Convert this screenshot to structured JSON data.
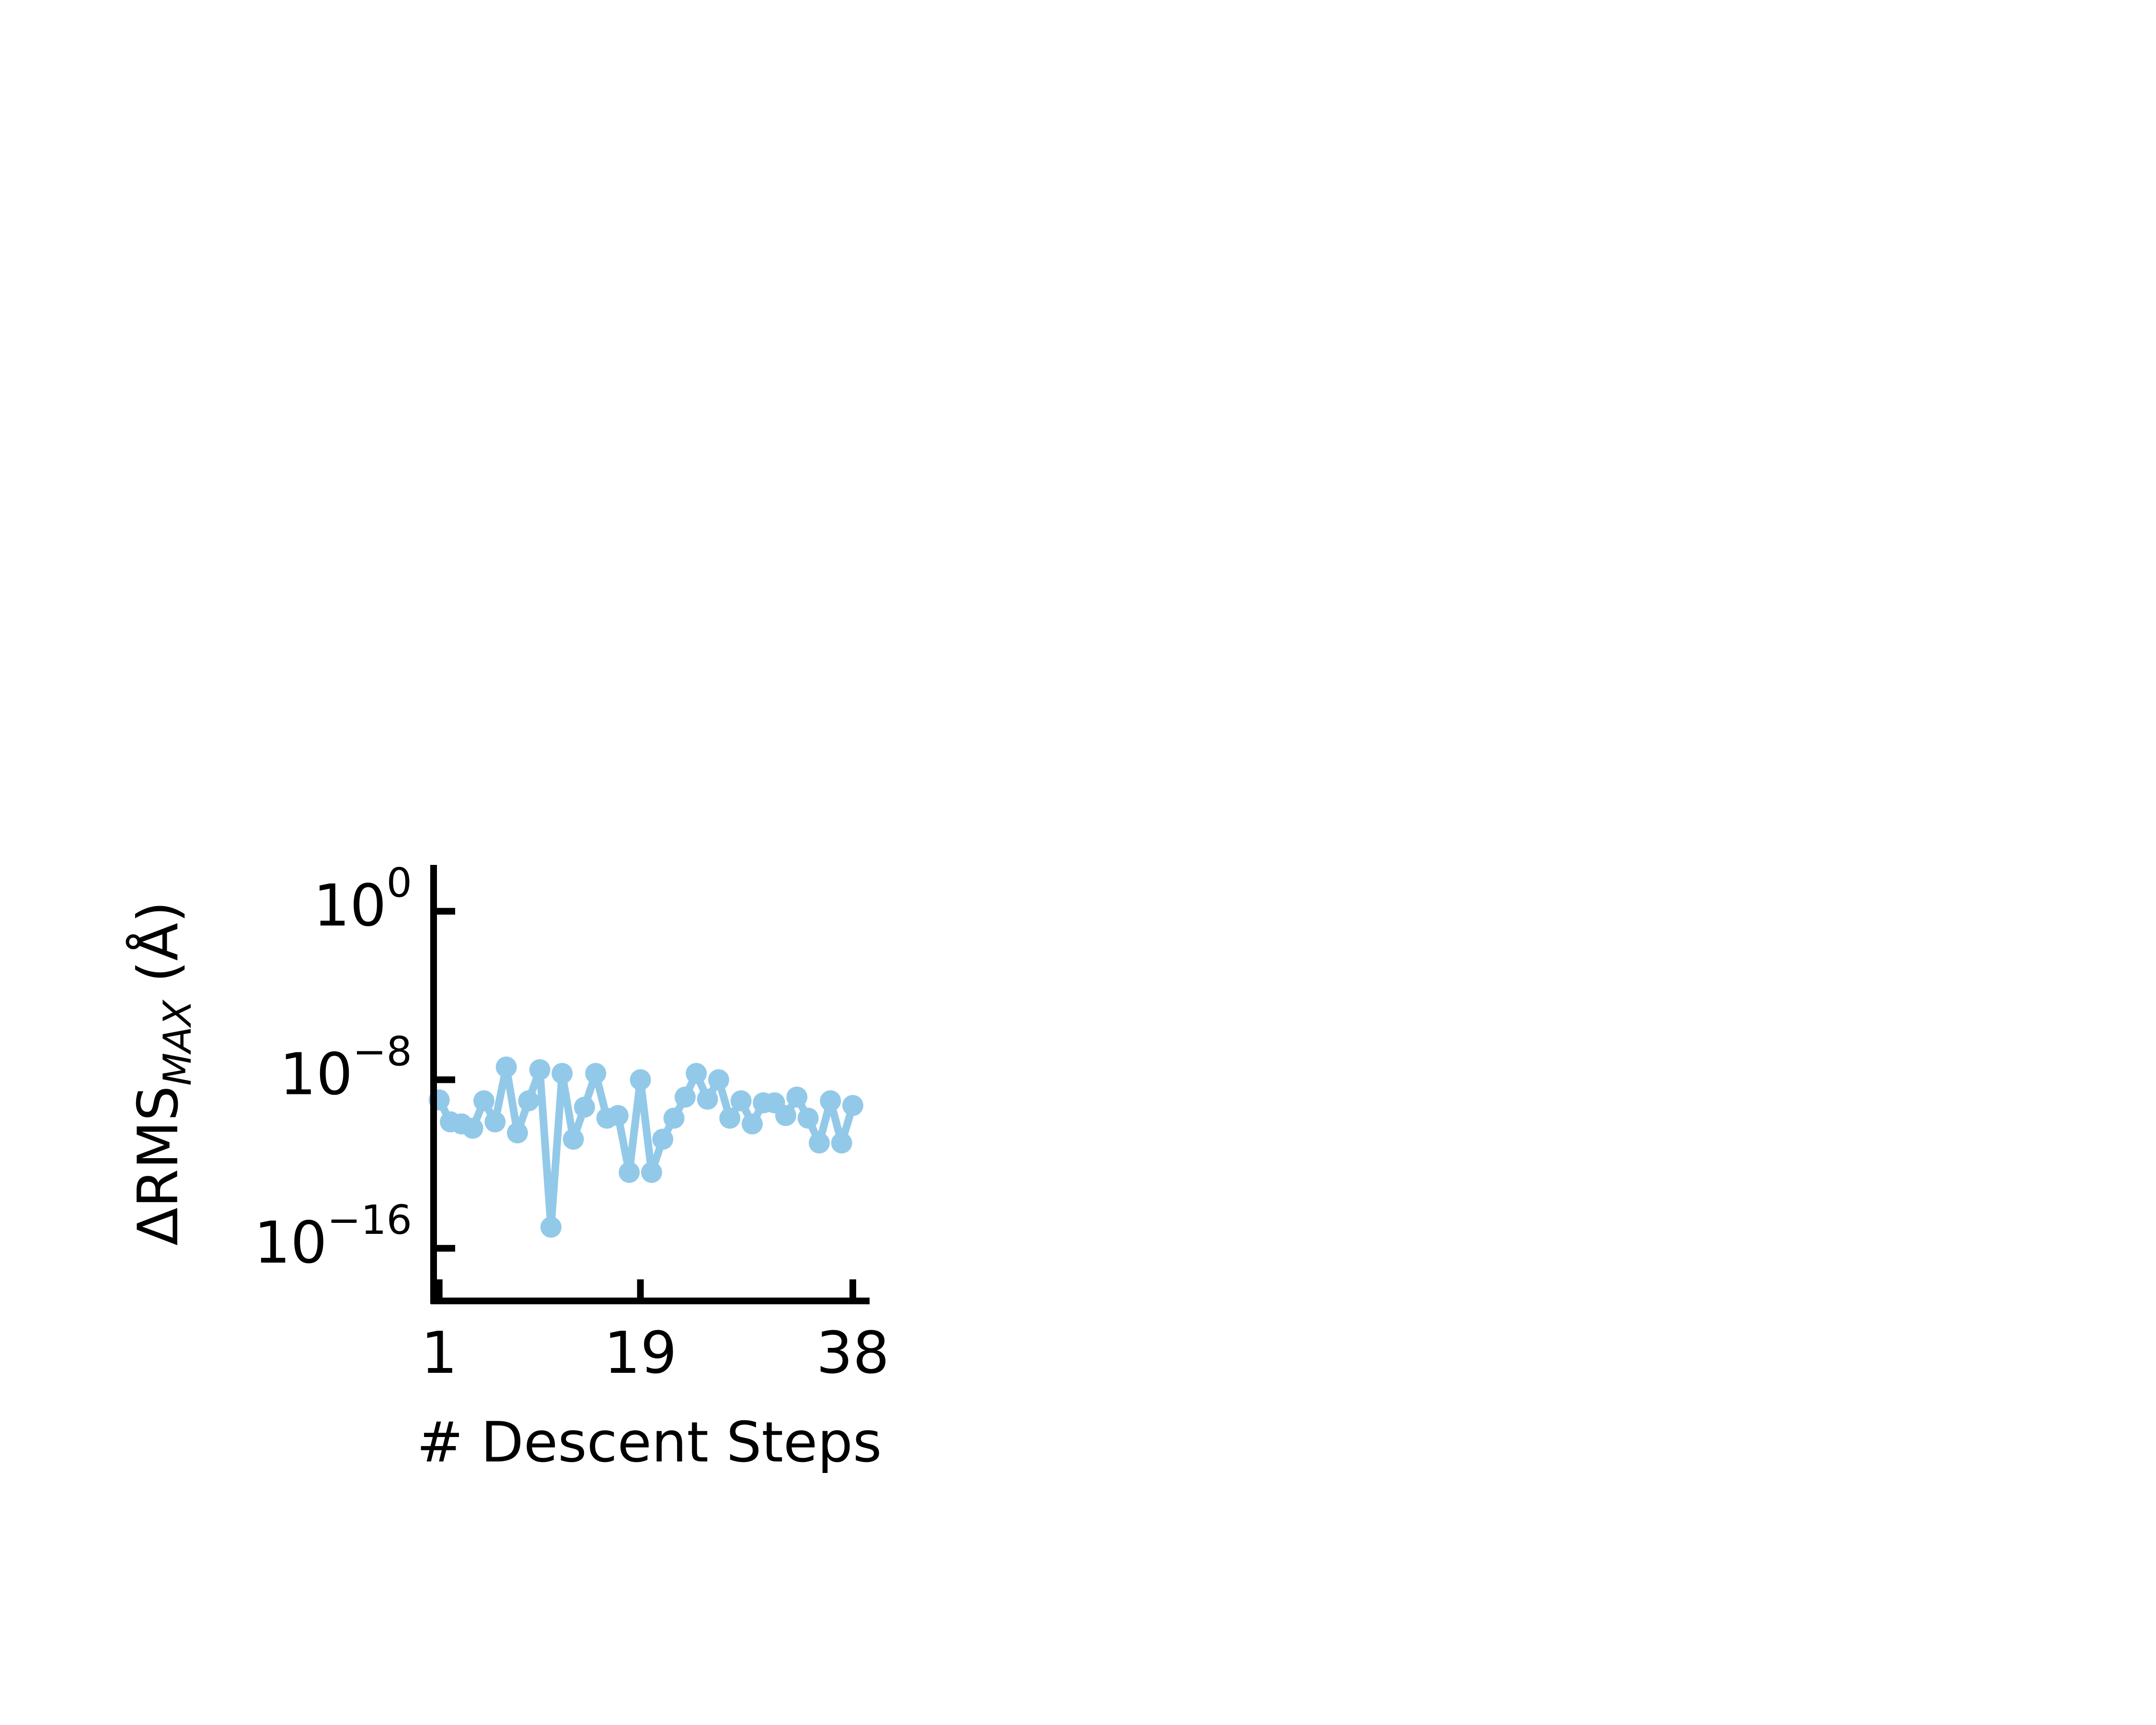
{
  "colors": {
    "series": "#93c9e8",
    "axis": "#000000",
    "background": "#ffffff"
  },
  "chart_data": {
    "type": "line",
    "xlabel": "# Descent Steps",
    "ylabel": {
      "prefix": "ΔRMS",
      "subscript": "MAX",
      "suffix": " (Å)"
    },
    "y_scale": "log",
    "xlim": [
      0.5,
      39.5
    ],
    "ylim_log10": [
      -18.5,
      2.2
    ],
    "x_ticks": [
      {
        "value": 1,
        "label": "1"
      },
      {
        "value": 19,
        "label": "19"
      },
      {
        "value": 38,
        "label": "38"
      }
    ],
    "y_ticks": [
      {
        "log10": 0,
        "base": "10",
        "exponent": "0"
      },
      {
        "log10": -8,
        "base": "10",
        "exponent": "−8"
      },
      {
        "log10": -16,
        "base": "10",
        "exponent": "−16"
      }
    ],
    "grid": false,
    "legend": "none",
    "series": [
      {
        "x": [
          1,
          2,
          3,
          4,
          5,
          6,
          7,
          8,
          9,
          10,
          11,
          12,
          13,
          14,
          15,
          16,
          17,
          18,
          19,
          20,
          21,
          22,
          23,
          24,
          25,
          26,
          27,
          28,
          29,
          30,
          31,
          32,
          33,
          34,
          35,
          36,
          37,
          38
        ],
        "y": [
          1.1e-09,
          1e-10,
          8e-11,
          5e-11,
          1e-09,
          1e-10,
          4e-08,
          3e-11,
          1e-09,
          3e-08,
          1e-15,
          2e-08,
          1.5e-11,
          5e-10,
          2e-08,
          1.5e-10,
          2e-10,
          4e-13,
          1e-08,
          4e-13,
          1.5e-11,
          1.5e-10,
          1.5e-09,
          2e-08,
          1.2e-09,
          1e-08,
          1.5e-10,
          1e-09,
          8e-11,
          8e-10,
          8e-10,
          2e-10,
          1.5e-09,
          1.5e-10,
          1e-11,
          1e-09,
          1e-11,
          6e-10
        ]
      }
    ]
  }
}
